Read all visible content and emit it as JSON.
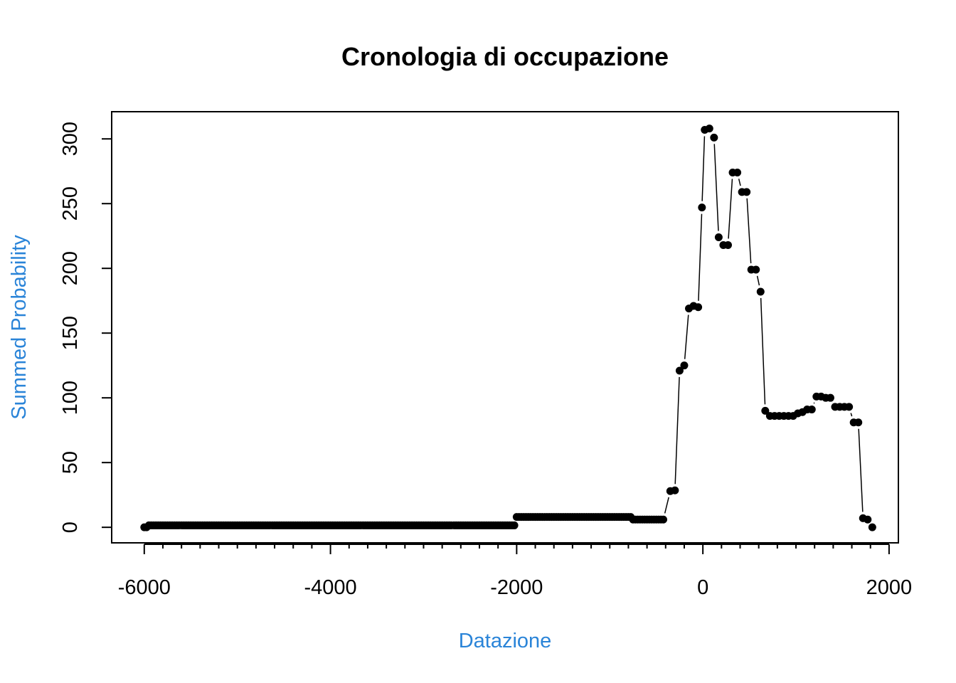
{
  "chart_data": {
    "type": "line",
    "title": "Cronologia di occupazione",
    "xlabel": "Datazione",
    "ylabel": "Summed Probability",
    "xlim": [
      -6350,
      2100
    ],
    "ylim": [
      -12,
      321
    ],
    "xticks": [
      -6000,
      -4000,
      -2000,
      0,
      2000
    ],
    "xminor_step": 200,
    "yticks": [
      0,
      50,
      100,
      150,
      200,
      250,
      300
    ],
    "grid": false,
    "legend": "none",
    "colors": {
      "points": "#000000",
      "axis_labels": "#2a84d8"
    },
    "segments": [
      {
        "x_start": -6000,
        "x_end": -5950,
        "value": 0
      },
      {
        "x_start": -5950,
        "x_end": -2000,
        "value": 1.5
      },
      {
        "x_start": -2000,
        "x_end": -750,
        "value": 8
      },
      {
        "x_start": -750,
        "x_end": -400,
        "value": 6
      }
    ],
    "points": [
      [
        -350,
        28
      ],
      [
        -300,
        28.5
      ],
      [
        -250,
        121
      ],
      [
        -200,
        125
      ],
      [
        -150,
        169
      ],
      [
        -100,
        171
      ],
      [
        -50,
        170
      ],
      [
        -10,
        247
      ],
      [
        20,
        307
      ],
      [
        70,
        308
      ],
      [
        120,
        301
      ],
      [
        170,
        224
      ],
      [
        220,
        218
      ],
      [
        270,
        218
      ],
      [
        320,
        274
      ],
      [
        370,
        274
      ],
      [
        420,
        259
      ],
      [
        470,
        259
      ],
      [
        520,
        199
      ],
      [
        570,
        199
      ],
      [
        620,
        182
      ],
      [
        670,
        90
      ],
      [
        720,
        86
      ],
      [
        770,
        86
      ],
      [
        820,
        86
      ],
      [
        870,
        86
      ],
      [
        920,
        86
      ],
      [
        970,
        86
      ],
      [
        1020,
        88
      ],
      [
        1070,
        89
      ],
      [
        1120,
        91
      ],
      [
        1170,
        91
      ],
      [
        1220,
        101
      ],
      [
        1270,
        101
      ],
      [
        1320,
        100
      ],
      [
        1370,
        100
      ],
      [
        1420,
        93
      ],
      [
        1470,
        93
      ],
      [
        1520,
        93
      ],
      [
        1570,
        93
      ],
      [
        1620,
        81
      ],
      [
        1670,
        81
      ],
      [
        1720,
        7
      ],
      [
        1770,
        6
      ],
      [
        1820,
        0
      ]
    ]
  }
}
